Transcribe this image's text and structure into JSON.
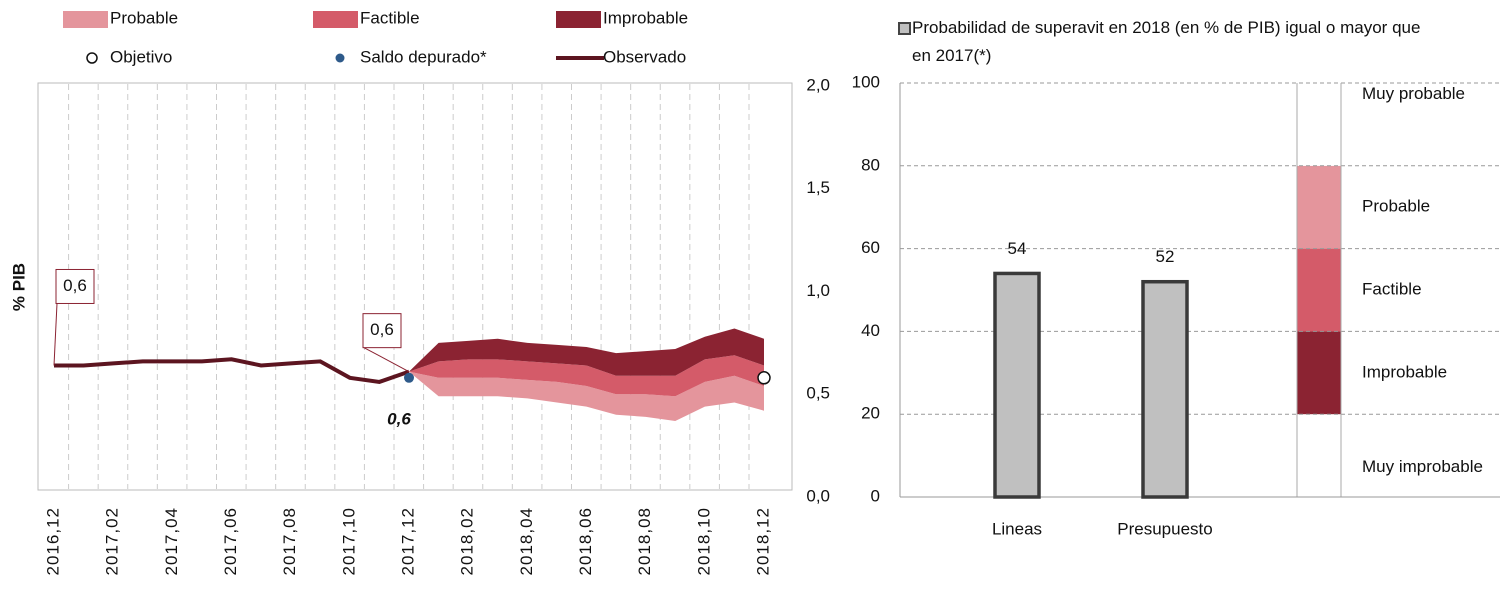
{
  "chart_data": [
    {
      "type": "fan",
      "y_label": "% PIB",
      "categories": [
        "2016,12",
        null,
        "2017,02",
        null,
        "2017,04",
        null,
        "2017,06",
        null,
        "2017,08",
        null,
        "2017,10",
        null,
        "2017,12",
        null,
        "2018,02",
        null,
        "2018,04",
        null,
        "2018,06",
        null,
        "2018,08",
        null,
        "2018,10",
        null,
        "2018,12"
      ],
      "ylim": [
        0,
        2
      ],
      "yticks": [
        {
          "value": 0,
          "label": "0,0"
        },
        {
          "value": 0.5,
          "label": "0,5"
        },
        {
          "value": 1,
          "label": "1,0"
        },
        {
          "value": 1.5,
          "label": "1,5"
        },
        {
          "value": 2,
          "label": "2,0"
        }
      ],
      "grid": true,
      "bands": [
        {
          "name": "Probable",
          "color": "#e4959c",
          "low": [
            null,
            null,
            null,
            null,
            null,
            null,
            null,
            null,
            null,
            null,
            null,
            null,
            0.61,
            0.49,
            0.49,
            0.49,
            0.48,
            0.46,
            0.44,
            0.4,
            0.39,
            0.37,
            0.44,
            0.46,
            0.42
          ],
          "high": [
            null,
            null,
            null,
            null,
            null,
            null,
            null,
            null,
            null,
            null,
            null,
            null,
            0.61,
            0.58,
            0.58,
            0.58,
            0.57,
            0.56,
            0.54,
            0.5,
            0.5,
            0.49,
            0.56,
            0.59,
            0.54
          ]
        },
        {
          "name": "Factible",
          "color": "#d45b69",
          "low": [
            null,
            null,
            null,
            null,
            null,
            null,
            null,
            null,
            null,
            null,
            null,
            null,
            0.61,
            0.58,
            0.58,
            0.58,
            0.57,
            0.56,
            0.54,
            0.5,
            0.5,
            0.49,
            0.56,
            0.59,
            0.54
          ],
          "high": [
            null,
            null,
            null,
            null,
            null,
            null,
            null,
            null,
            null,
            null,
            null,
            null,
            0.61,
            0.66,
            0.67,
            0.67,
            0.66,
            0.65,
            0.64,
            0.59,
            0.59,
            0.59,
            0.67,
            0.69,
            0.64
          ]
        },
        {
          "name": "Improbable",
          "color": "#8b2332",
          "low": [
            null,
            null,
            null,
            null,
            null,
            null,
            null,
            null,
            null,
            null,
            null,
            null,
            0.61,
            0.66,
            0.67,
            0.67,
            0.66,
            0.65,
            0.64,
            0.59,
            0.59,
            0.59,
            0.67,
            0.69,
            0.64
          ],
          "high": [
            null,
            null,
            null,
            null,
            null,
            null,
            null,
            null,
            null,
            null,
            null,
            null,
            0.61,
            0.75,
            0.76,
            0.77,
            0.75,
            0.74,
            0.73,
            0.7,
            0.71,
            0.72,
            0.78,
            0.82,
            0.77
          ]
        }
      ],
      "series": [
        {
          "name": "Observado",
          "color": "#5c1520",
          "values": [
            0.64,
            0.64,
            0.65,
            0.66,
            0.66,
            0.66,
            0.67,
            0.64,
            0.65,
            0.66,
            0.58,
            0.56,
            0.61,
            null,
            null,
            null,
            null,
            null,
            null,
            null,
            null,
            null,
            null,
            null,
            null
          ],
          "value_labels": [
            "0,6",
            null,
            null,
            null,
            null,
            null,
            null,
            null,
            null,
            null,
            null,
            null,
            "0,6",
            null,
            null,
            null,
            null,
            null,
            null,
            null,
            null,
            null,
            null,
            null,
            null
          ]
        },
        {
          "name": "Saldo depurado*",
          "color": "#2e5a8a",
          "values": [
            null,
            null,
            null,
            null,
            null,
            null,
            null,
            null,
            null,
            null,
            null,
            null,
            0.58,
            null,
            null,
            null,
            null,
            null,
            null,
            null,
            null,
            null,
            null,
            null,
            null
          ],
          "value_labels": [
            null,
            null,
            null,
            null,
            null,
            null,
            null,
            null,
            null,
            null,
            null,
            null,
            "0,6",
            null,
            null,
            null,
            null,
            null,
            null,
            null,
            null,
            null,
            null,
            null,
            null
          ]
        },
        {
          "name": "Objetivo",
          "color": "#ffffff",
          "values": [
            null,
            null,
            null,
            null,
            null,
            null,
            null,
            null,
            null,
            null,
            null,
            null,
            null,
            null,
            null,
            null,
            null,
            null,
            null,
            null,
            null,
            null,
            null,
            null,
            0.58
          ]
        }
      ]
    },
    {
      "type": "bar",
      "title": "Probabilidad de superavit en 2018 (en % de PIB) igual o mayor que en 2017(*)",
      "categories": [
        "Lineas",
        "Presupuesto"
      ],
      "values": [
        54,
        52
      ],
      "color": "#c0c0c0",
      "ylim": [
        0,
        100
      ],
      "yticks": [
        0,
        20,
        40,
        60,
        80,
        100
      ],
      "grid": true,
      "bands": [
        {
          "name": "Muy improbable",
          "low": 0,
          "high": 20,
          "color": "#ffffff"
        },
        {
          "name": "Improbable",
          "low": 20,
          "high": 40,
          "color": "#8b2332"
        },
        {
          "name": "Factible",
          "low": 40,
          "high": 60,
          "color": "#d45b69"
        },
        {
          "name": "Probable",
          "low": 60,
          "high": 80,
          "color": "#e4959c"
        },
        {
          "name": "Muy probable",
          "low": 80,
          "high": 100,
          "color": "#ffffff"
        }
      ]
    }
  ]
}
